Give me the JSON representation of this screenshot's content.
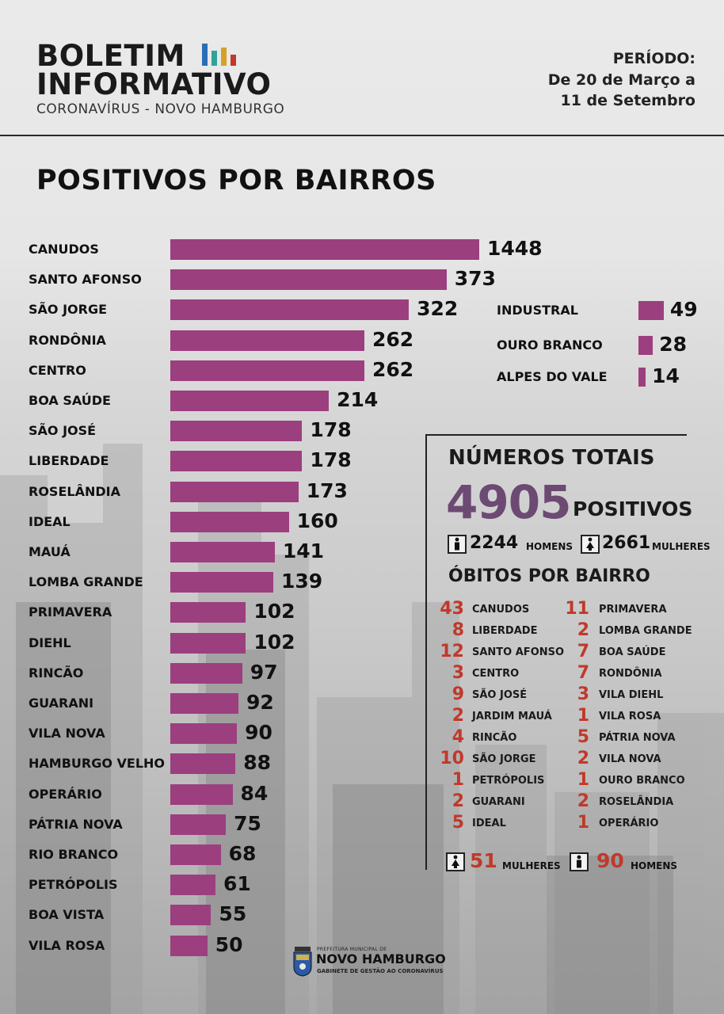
{
  "header": {
    "title_line1": "BOLETIM",
    "title_line2": "INFORMATIVO",
    "subtitle": "CORONAVÍRUS - NOVO HAMBURGO",
    "period_label": "PERÍODO:",
    "period_line1": "De 20 de Março a",
    "period_line2": "11 de Setembro",
    "logo_colors": [
      "#2a6fb5",
      "#2fa39a",
      "#d3a22a",
      "#c0392b"
    ]
  },
  "section_title": "POSITIVOS POR BAIRROS",
  "chart_data": {
    "type": "bar",
    "orientation": "horizontal",
    "title": "POSITIVOS POR BAIRROS",
    "bar_color": "#9b3f7f",
    "categories": [
      "CANUDOS",
      "SANTO AFONSO",
      "SÃO JORGE",
      "RONDÔNIA",
      "CENTRO",
      "BOA SAÚDE",
      "SÃO JOSÉ",
      "LIBERDADE",
      "ROSELÂNDIA",
      "IDEAL",
      "MAUÁ",
      "LOMBA GRANDE",
      "PRIMAVERA",
      "DIEHL",
      "RINCÃO",
      "GUARANI",
      "VILA NOVA",
      "HAMBURGO VELHO",
      "OPERÁRIO",
      "PÁTRIA NOVA",
      "RIO BRANCO",
      "PETRÓPOLIS",
      "BOA VISTA",
      "VILA ROSA"
    ],
    "values": [
      1448,
      373,
      322,
      262,
      262,
      214,
      178,
      178,
      173,
      160,
      141,
      139,
      102,
      102,
      97,
      92,
      90,
      88,
      84,
      75,
      68,
      61,
      55,
      50
    ],
    "side_categories": [
      "INDUSTRAL",
      "OURO BRANCO",
      "ALPES DO VALE"
    ],
    "side_values": [
      49,
      28,
      14
    ]
  },
  "totals": {
    "title": "NÚMEROS TOTAIS",
    "positive_total": "4905",
    "positive_label": "POSITIVOS",
    "men_count": "2244",
    "men_label": "HOMENS",
    "women_count": "2661",
    "women_label": "MULHERES"
  },
  "deaths": {
    "title": "ÓBITOS POR BAIRRO",
    "left": [
      {
        "n": "43",
        "name": "CANUDOS"
      },
      {
        "n": "8",
        "name": "LIBERDADE"
      },
      {
        "n": "12",
        "name": "SANTO AFONSO"
      },
      {
        "n": "3",
        "name": "CENTRO"
      },
      {
        "n": "9",
        "name": "SÃO JOSÉ"
      },
      {
        "n": "2",
        "name": "JARDIM MAUÁ"
      },
      {
        "n": "4",
        "name": "RINCÃO"
      },
      {
        "n": "10",
        "name": "SÃO JORGE"
      },
      {
        "n": "1",
        "name": "PETRÓPOLIS"
      },
      {
        "n": "2",
        "name": "GUARANI"
      },
      {
        "n": "5",
        "name": "IDEAL"
      }
    ],
    "right": [
      {
        "n": "11",
        "name": "PRIMAVERA"
      },
      {
        "n": "2",
        "name": "LOMBA GRANDE"
      },
      {
        "n": "7",
        "name": "BOA SAÚDE"
      },
      {
        "n": "7",
        "name": "RONDÔNIA"
      },
      {
        "n": "3",
        "name": "VILA DIEHL"
      },
      {
        "n": "1",
        "name": "VILA ROSA"
      },
      {
        "n": "5",
        "name": "PÁTRIA NOVA"
      },
      {
        "n": "2",
        "name": "VILA NOVA"
      },
      {
        "n": "1",
        "name": "OURO BRANCO"
      },
      {
        "n": "2",
        "name": "ROSELÂNDIA"
      },
      {
        "n": "1",
        "name": "OPERÁRIO"
      }
    ],
    "women_count": "51",
    "women_label": "MULHERES",
    "men_count": "90",
    "men_label": "HOMENS",
    "number_color": "#c0392b"
  },
  "footer": {
    "small": "PREFEITURA MUNICIPAL DE",
    "big": "NOVO HAMBURGO",
    "sub": "GABINETE DE GESTÃO AO CORONAVÍRUS"
  }
}
